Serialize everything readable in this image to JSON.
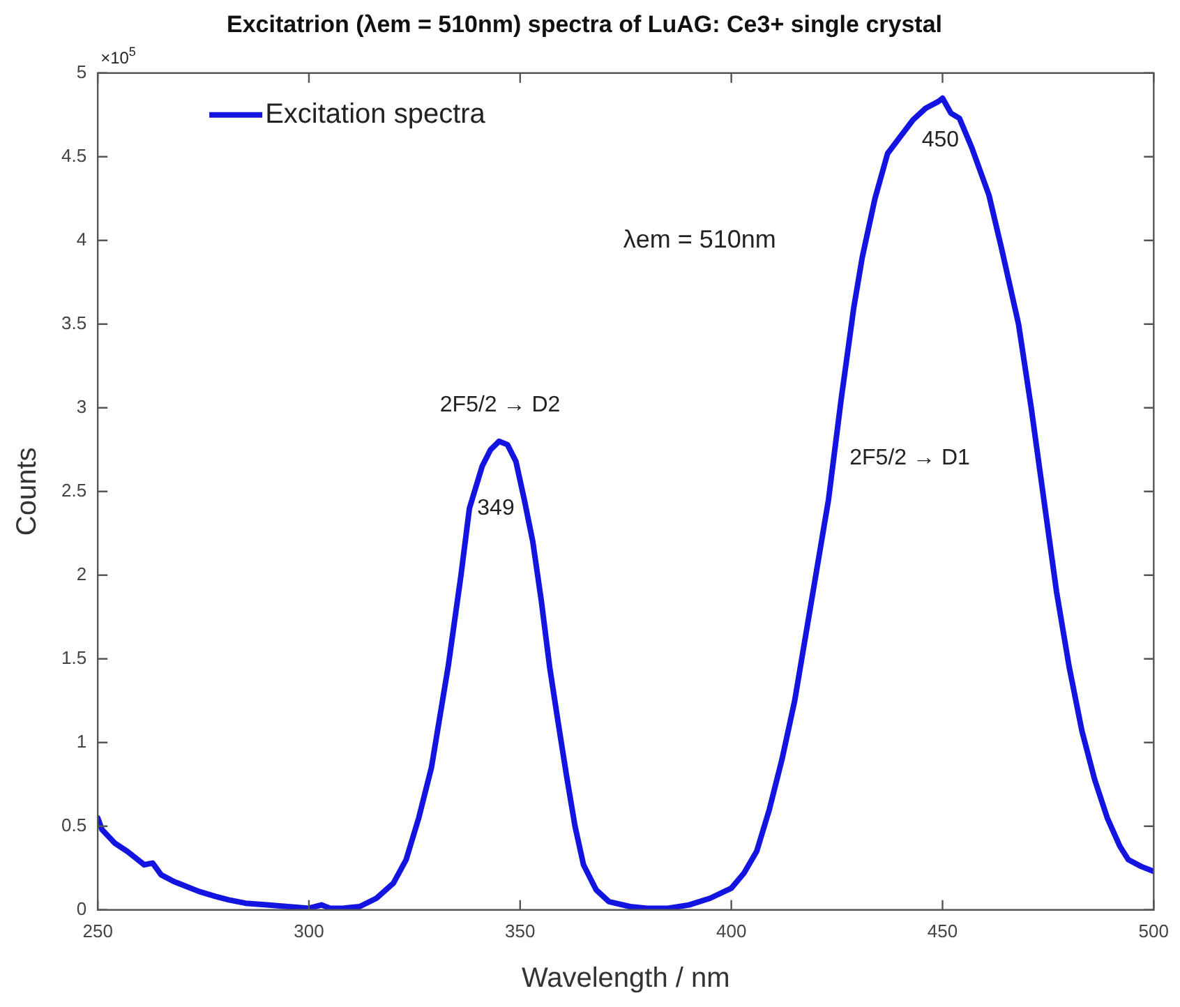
{
  "chart_data": {
    "type": "line",
    "title": "Excitatrion (λem = 510nm) spectra of LuAG: Ce3+ single crystal",
    "xlabel": "Wavelength / nm",
    "ylabel": "Counts",
    "xlim": [
      250,
      500
    ],
    "xticks": [
      250,
      300,
      350,
      400,
      450,
      500
    ],
    "ylim": [
      0,
      5
    ],
    "yticks": [
      0,
      0.5,
      1,
      1.5,
      2,
      2.5,
      3,
      3.5,
      4,
      4.5,
      5
    ],
    "grid": false,
    "legend": "top left",
    "marker": "none",
    "line_style": "solid",
    "annotations": [
      "×10$^{5}$",
      "λem = 510nm",
      "349",
      "450",
      "2F5/2 → D2",
      "2F5/2 → D1"
    ],
    "series": [
      {
        "name": "Excitation spectra",
        "color": "#1414e0",
        "x": [
          250,
          251,
          254,
          257,
          259,
          261,
          263,
          265,
          268,
          270,
          274,
          278,
          281,
          285,
          290,
          295,
          300,
          303,
          305,
          308,
          312,
          316,
          320,
          323,
          326,
          329,
          333,
          336,
          338,
          341,
          343,
          345,
          347,
          349,
          351,
          353,
          355,
          357,
          359,
          361,
          363,
          365,
          368,
          371,
          376,
          380,
          385,
          390,
          395,
          400,
          403,
          406,
          409,
          412,
          415,
          418,
          421,
          423,
          426,
          429,
          431,
          434,
          437,
          440,
          443,
          446,
          449,
          450,
          452,
          454,
          457,
          461,
          464,
          468,
          471,
          474,
          477,
          480,
          483,
          486,
          489,
          492,
          494,
          497,
          500
        ],
        "values": [
          0.55,
          0.48,
          0.4,
          0.35,
          0.31,
          0.27,
          0.28,
          0.21,
          0.17,
          0.15,
          0.11,
          0.08,
          0.06,
          0.04,
          0.03,
          0.02,
          0.01,
          0.03,
          0.01,
          0.01,
          0.02,
          0.07,
          0.16,
          0.3,
          0.55,
          0.85,
          1.46,
          2.0,
          2.4,
          2.65,
          2.75,
          2.8,
          2.78,
          2.68,
          2.45,
          2.2,
          1.85,
          1.45,
          1.12,
          0.8,
          0.5,
          0.27,
          0.12,
          0.05,
          0.02,
          0.01,
          0.01,
          0.03,
          0.07,
          0.13,
          0.22,
          0.35,
          0.6,
          0.9,
          1.25,
          1.7,
          2.15,
          2.45,
          3.05,
          3.6,
          3.9,
          4.25,
          4.52,
          4.62,
          4.72,
          4.79,
          4.83,
          4.85,
          4.76,
          4.73,
          4.55,
          4.27,
          3.95,
          3.5,
          3.0,
          2.45,
          1.9,
          1.45,
          1.07,
          0.78,
          0.55,
          0.38,
          0.3,
          0.26,
          0.23
        ]
      }
    ]
  }
}
